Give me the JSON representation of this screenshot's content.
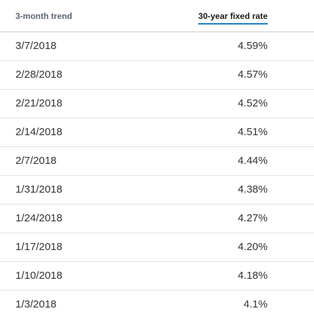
{
  "table": {
    "headers": {
      "date": "3-month trend",
      "rate": "30-year fixed rate"
    },
    "rows": [
      {
        "date": "3/7/2018",
        "rate": "4.59%"
      },
      {
        "date": "2/28/2018",
        "rate": "4.57%"
      },
      {
        "date": "2/21/2018",
        "rate": "4.52%"
      },
      {
        "date": "2/14/2018",
        "rate": "4.51%"
      },
      {
        "date": "2/7/2018",
        "rate": "4.44%"
      },
      {
        "date": "1/31/2018",
        "rate": "4.38%"
      },
      {
        "date": "1/24/2018",
        "rate": "4.27%"
      },
      {
        "date": "1/17/2018",
        "rate": "4.20%"
      },
      {
        "date": "1/10/2018",
        "rate": "4.18%"
      },
      {
        "date": "1/3/2018",
        "rate": "4.1%"
      }
    ]
  },
  "colors": {
    "accent_underline": "#1f7ec2",
    "header_muted_text": "#5b6470",
    "row_divider": "#e1e1e1"
  }
}
